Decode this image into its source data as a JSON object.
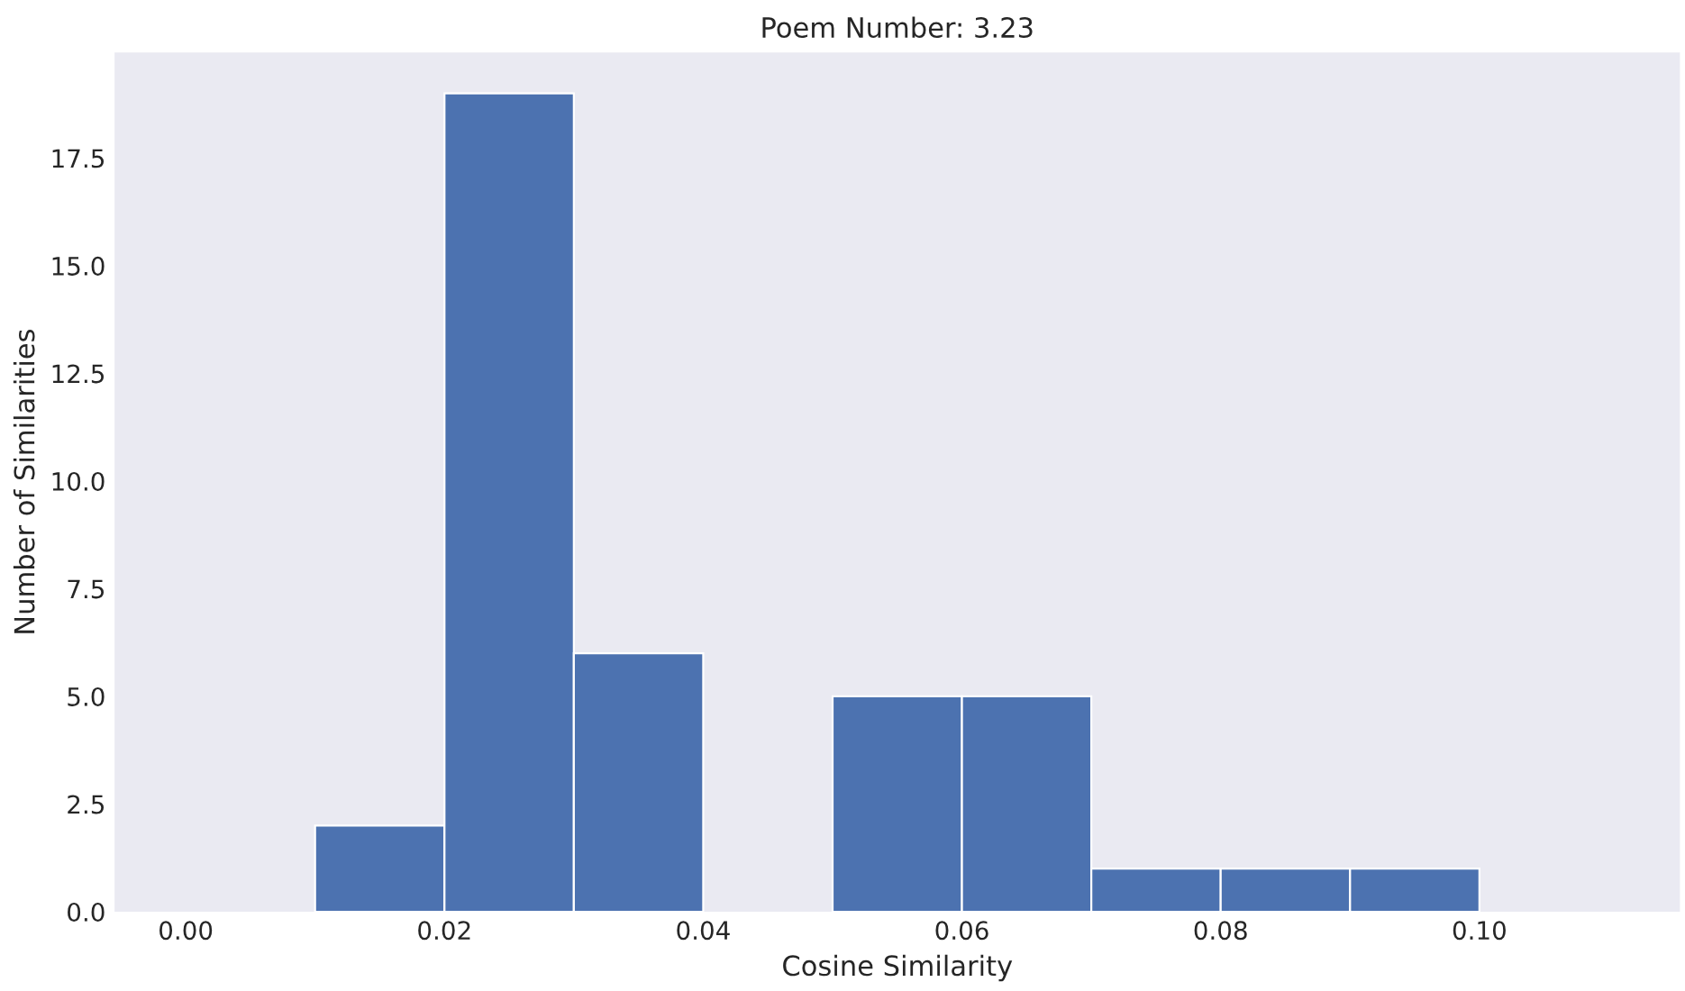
{
  "chart_data": {
    "type": "histogram",
    "title": "Poem Number: 3.23",
    "xlabel": "Cosine Similarity",
    "ylabel": "Number of Similarities",
    "bins": [
      0.0,
      0.01,
      0.02,
      0.03,
      0.04,
      0.05,
      0.06,
      0.07,
      0.08,
      0.09,
      0.1,
      0.11
    ],
    "values": [
      0,
      2,
      19,
      6,
      0,
      5,
      5,
      1,
      1,
      1,
      0
    ],
    "color": "#4c72b0",
    "xlim": [
      -0.0055,
      0.1155
    ],
    "xticks": [
      {
        "value": 0,
        "label": "0.00"
      },
      {
        "value": 0.02,
        "label": "0.02"
      },
      {
        "value": 0.04,
        "label": "0.04"
      },
      {
        "value": 0.06,
        "label": "0.06"
      },
      {
        "value": 0.08,
        "label": "0.08"
      },
      {
        "value": 0.1,
        "label": "0.10"
      }
    ],
    "ylim": [
      0,
      19.95
    ],
    "yticks": [
      {
        "value": 0,
        "label": "0.0"
      },
      {
        "value": 2.5,
        "label": "2.5"
      },
      {
        "value": 5,
        "label": "5.0"
      },
      {
        "value": 7.5,
        "label": "7.5"
      },
      {
        "value": 10,
        "label": "10.0"
      },
      {
        "value": 12.5,
        "label": "12.5"
      },
      {
        "value": 15,
        "label": "15.0"
      },
      {
        "value": 17.5,
        "label": "17.5"
      }
    ],
    "grid": false
  }
}
